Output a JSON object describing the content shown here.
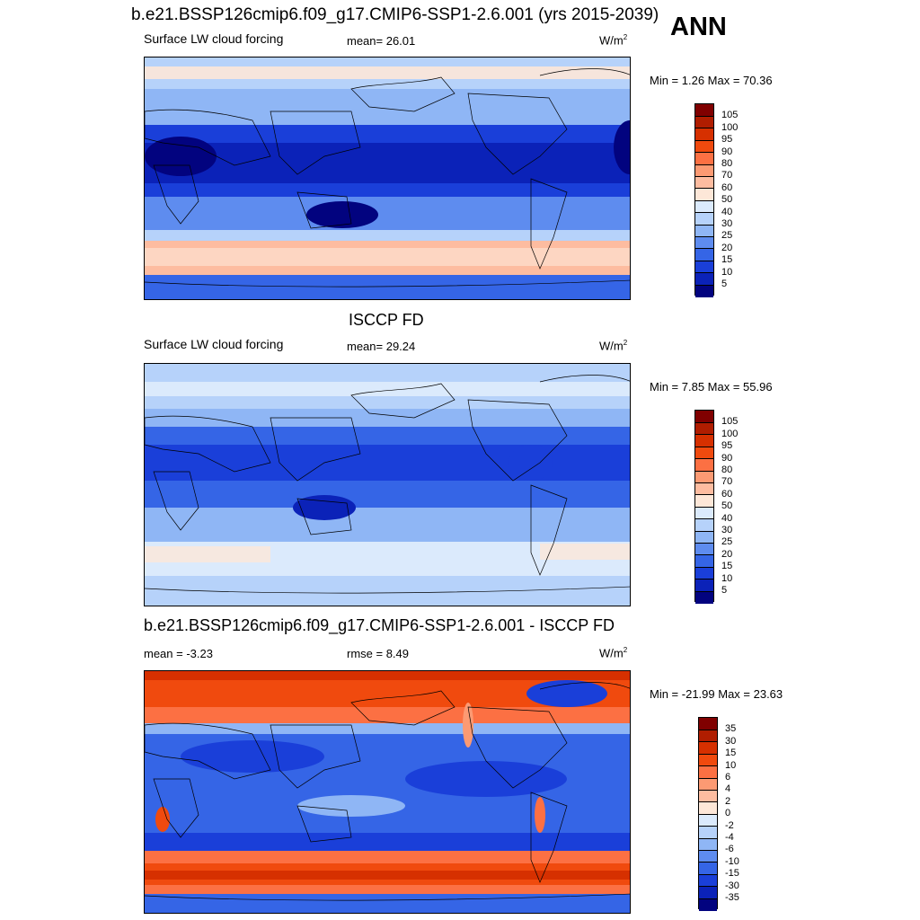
{
  "header": {
    "title": "b.e21.BSSP126cmip6.f09_g17.CMIP6-SSP1-2.6.001 (yrs 2015-2039)",
    "season": "ANN"
  },
  "panels": [
    {
      "title": "",
      "variable": "Surface LW cloud forcing",
      "stat_left": "",
      "stat_center": "mean=  26.01",
      "units": "W/m",
      "units_exp": "2",
      "minmax": "Min =   1.26 Max =  70.36"
    },
    {
      "title": "ISCCP FD",
      "variable": "Surface LW cloud forcing",
      "stat_left": "",
      "stat_center": "mean=  29.24",
      "units": "W/m",
      "units_exp": "2",
      "minmax": "Min =   7.85 Max =  55.96"
    },
    {
      "title": "b.e21.BSSP126cmip6.f09_g17.CMIP6-SSP1-2.6.001 - ISCCP FD",
      "variable": "",
      "stat_left": "mean =  -3.23",
      "stat_center": "rmse =   8.49",
      "units": "W/m",
      "units_exp": "2",
      "minmax": "Min = -21.99 Max =  23.63"
    }
  ],
  "chart_data": [
    {
      "type": "heatmap",
      "title": "",
      "subtitle": "Surface LW cloud forcing",
      "mean": 26.01,
      "min": 1.26,
      "max": 70.36,
      "units": "W/m2",
      "colorbar": {
        "levels": [
          "105",
          "100",
          "95",
          "90",
          "80",
          "70",
          "60",
          "50",
          "40",
          "30",
          "25",
          "20",
          "15",
          "10",
          "5"
        ],
        "colors": [
          "#800000",
          "#b01d00",
          "#d63000",
          "#f04a0e",
          "#fc7043",
          "#fc9a73",
          "#fdbca0",
          "#fde7d8",
          "#dbeafc",
          "#b6d2fa",
          "#8fb6f5",
          "#5e8cef",
          "#3565e6",
          "#1a3fd9",
          "#0b22b8",
          "#02037f"
        ]
      }
    },
    {
      "type": "heatmap",
      "title": "ISCCP FD",
      "subtitle": "Surface LW cloud forcing",
      "mean": 29.24,
      "min": 7.85,
      "max": 55.96,
      "units": "W/m2",
      "colorbar": {
        "levels": [
          "105",
          "100",
          "95",
          "90",
          "80",
          "70",
          "60",
          "50",
          "40",
          "30",
          "25",
          "20",
          "15",
          "10",
          "5"
        ],
        "colors": [
          "#800000",
          "#b01d00",
          "#d63000",
          "#f04a0e",
          "#fc7043",
          "#fc9a73",
          "#fdbca0",
          "#fde7d8",
          "#dbeafc",
          "#b6d2fa",
          "#8fb6f5",
          "#5e8cef",
          "#3565e6",
          "#1a3fd9",
          "#0b22b8",
          "#02037f"
        ]
      }
    },
    {
      "type": "heatmap",
      "title": "b.e21.BSSP126cmip6.f09_g17.CMIP6-SSP1-2.6.001 - ISCCP FD",
      "mean": -3.23,
      "rmse": 8.49,
      "min": -21.99,
      "max": 23.63,
      "units": "W/m2",
      "colorbar": {
        "levels": [
          "35",
          "30",
          "15",
          "10",
          "6",
          "4",
          "2",
          "0",
          "-2",
          "-4",
          "-6",
          "-10",
          "-15",
          "-30",
          "-35"
        ],
        "colors": [
          "#800000",
          "#b01d00",
          "#d63000",
          "#f04a0e",
          "#fc7043",
          "#fc9a73",
          "#fdbca0",
          "#fde7d8",
          "#dbeafc",
          "#b6d2fa",
          "#8fb6f5",
          "#5e8cef",
          "#3565e6",
          "#1a3fd9",
          "#0b22b8",
          "#02037f"
        ]
      }
    }
  ]
}
